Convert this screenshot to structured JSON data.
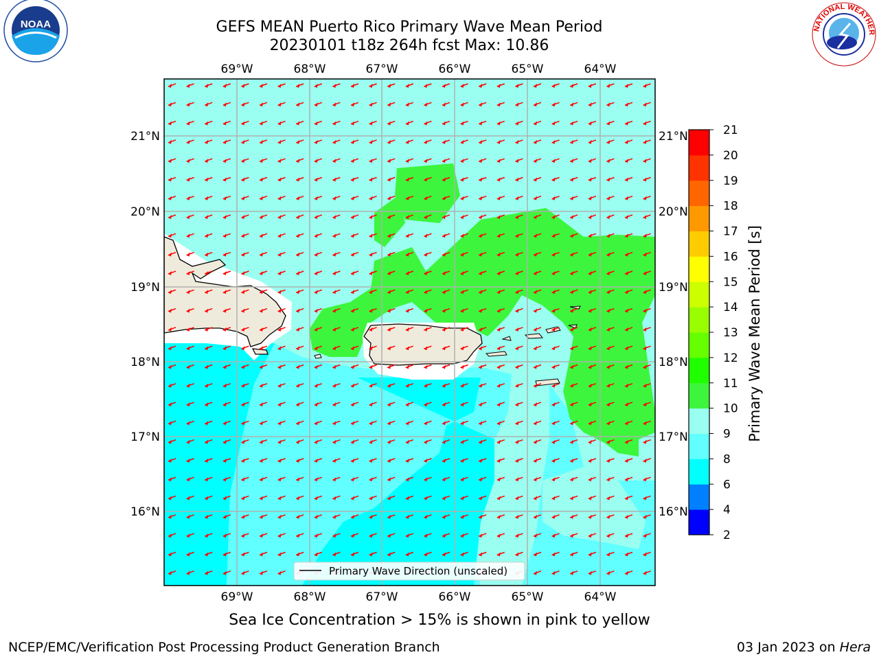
{
  "header": {
    "title_line1": "GEFS MEAN Puerto Rico Primary Wave Mean Period",
    "title_line2": "20230101 t18z 264h fcst   Max: 10.86"
  },
  "logos": {
    "left": {
      "icon": "noaa-logo",
      "text": "NOAA"
    },
    "right": {
      "icon": "nws-logo",
      "text": "NATIONAL WEATHER SERVICE"
    }
  },
  "map": {
    "lon_labels": [
      "69°W",
      "68°W",
      "67°W",
      "66°W",
      "65°W",
      "64°W"
    ],
    "lat_labels": [
      "21°N",
      "20°N",
      "19°N",
      "18°N",
      "17°N",
      "16°N"
    ],
    "legend_label": "Primary Wave Direction (unscaled)",
    "arrow_color": "#ff0000",
    "land_color": "#efebdc"
  },
  "colorbar": {
    "label": "Primary Wave Mean Period [s]",
    "ticks": [
      "2",
      "4",
      "6",
      "8",
      "9",
      "10",
      "11",
      "12",
      "13",
      "14",
      "15",
      "16",
      "17",
      "18",
      "19",
      "20",
      "21"
    ],
    "colors": [
      "#0000ff",
      "#0080ff",
      "#00ffff",
      "#61ffff",
      "#9afff0",
      "#3df53d",
      "#20ff00",
      "#66ff00",
      "#99ff00",
      "#ccff00",
      "#ffff00",
      "#ffcc00",
      "#ff9900",
      "#ff6600",
      "#ff3300",
      "#ff0000"
    ]
  },
  "footer": {
    "note": "Sea Ice Concentration > 15% is shown in pink to yellow",
    "credit": "NCEP/EMC/Verification Post Processing Product Generation Branch",
    "date": "03 Jan 2023 on ",
    "machine": "Hera"
  }
}
